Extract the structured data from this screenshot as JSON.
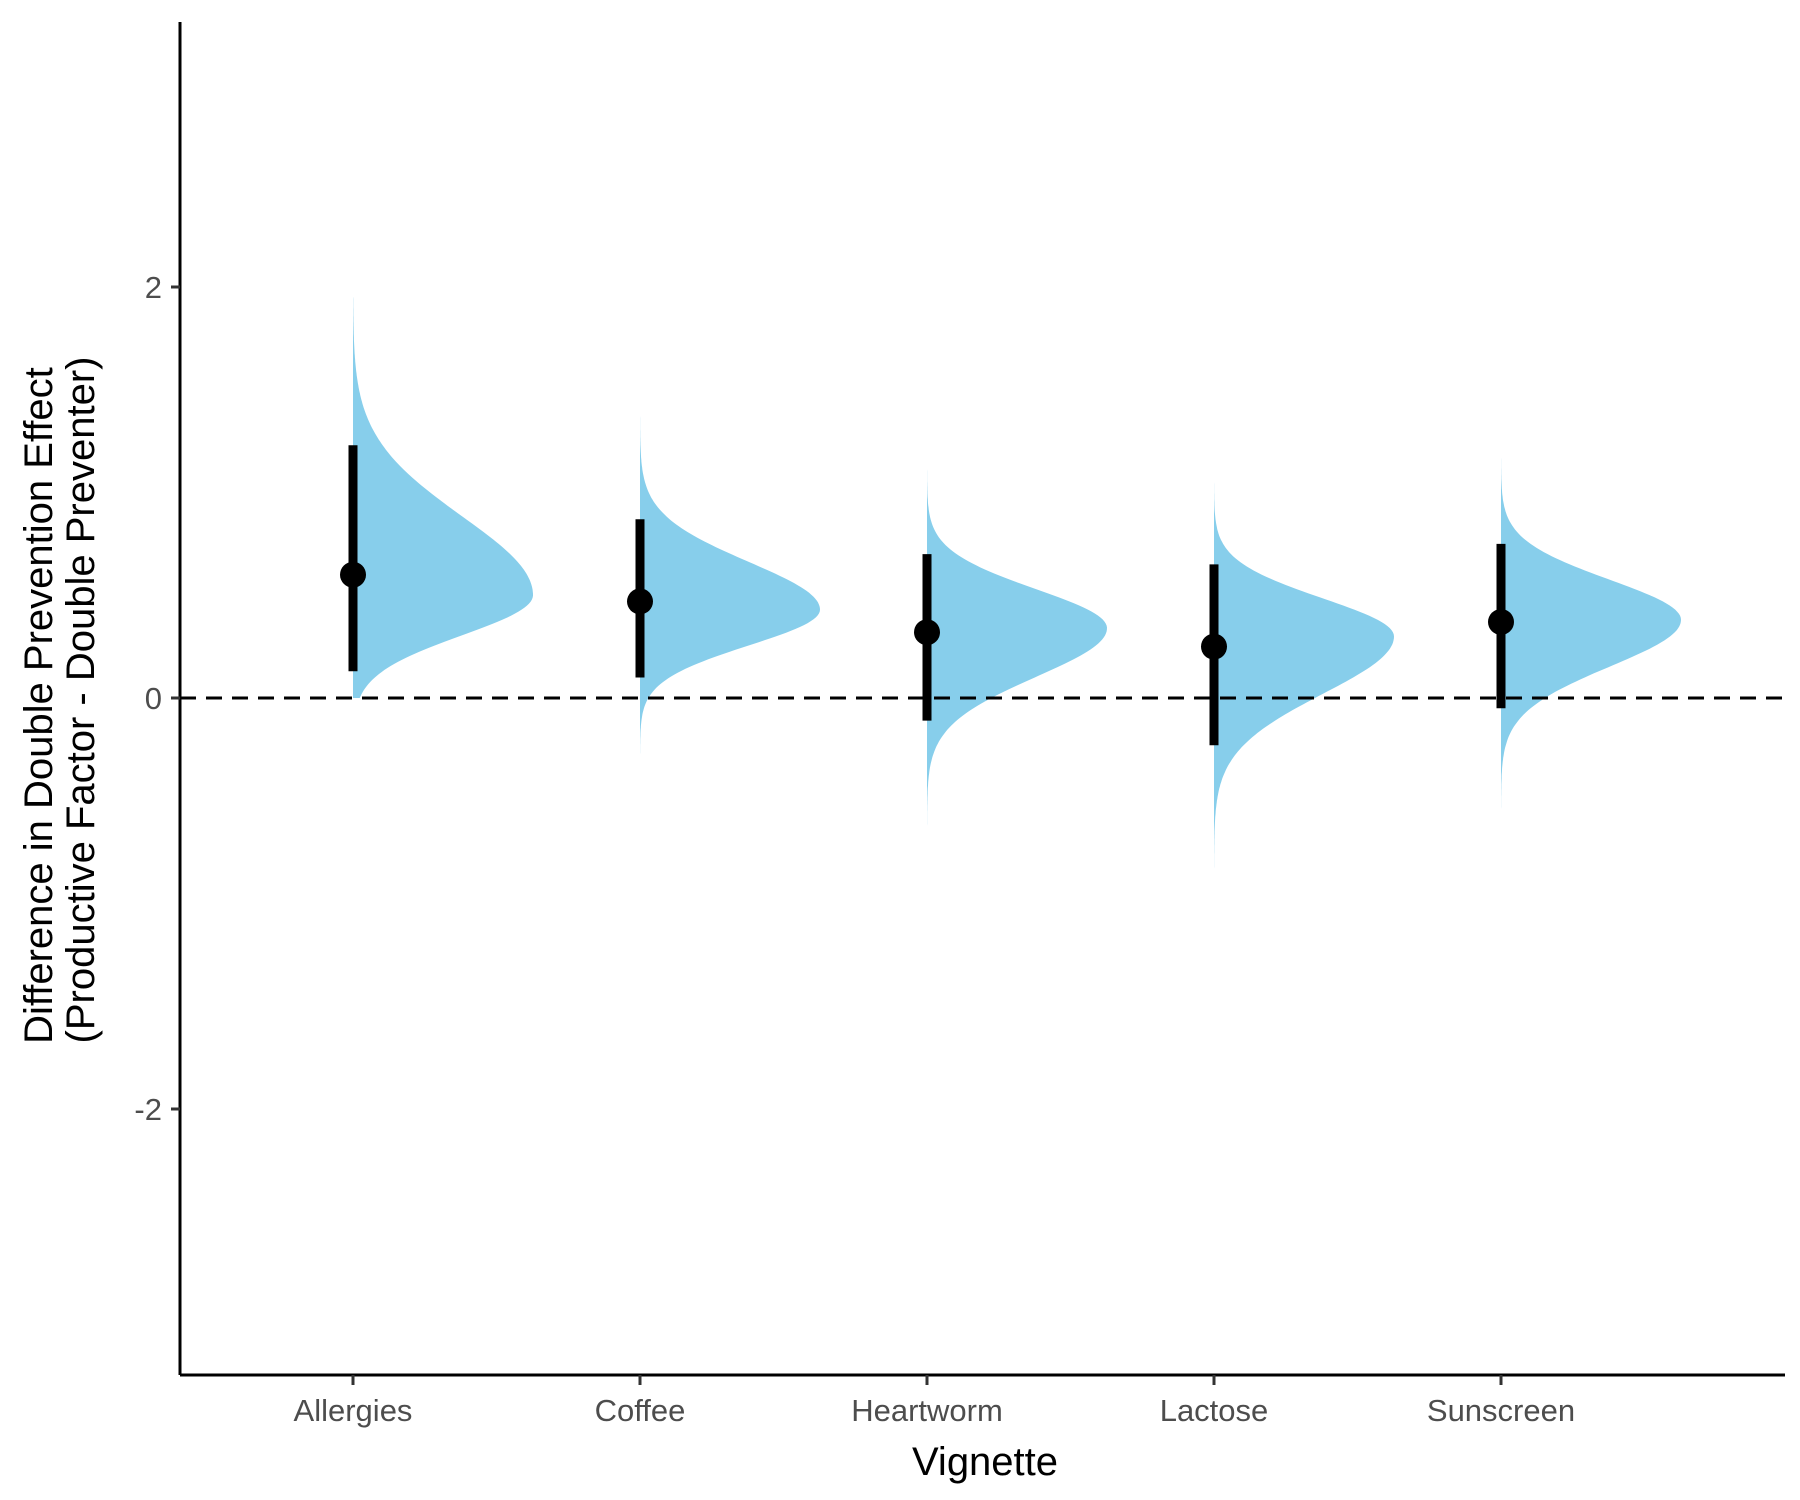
{
  "chart_data": {
    "type": "halfeye",
    "xlabel": "Vignette",
    "ylabel_lines": [
      "Difference in Double Prevention Effect",
      "(Productive Factor - Double Preventer)"
    ],
    "categories": [
      "Allergies",
      "Coffee",
      "Heartworm",
      "Lactose",
      "Sunscreen"
    ],
    "ylim": [
      -3.3,
      3.3
    ],
    "yticks": [
      -2,
      0,
      2
    ],
    "reference_line": 0,
    "grid": false,
    "distribution_color": "#87CEEB",
    "point_color": "#000000",
    "estimates": [
      {
        "category": "Allergies",
        "median": 0.6,
        "lower": 0.13,
        "upper": 1.23,
        "mode": 0.5,
        "range": [
          0.0,
          1.95
        ]
      },
      {
        "category": "Coffee",
        "median": 0.47,
        "lower": 0.1,
        "upper": 0.87,
        "mode": 0.43,
        "range": [
          -0.45,
          1.4
        ]
      },
      {
        "category": "Heartworm",
        "median": 0.32,
        "lower": -0.11,
        "upper": 0.7,
        "mode": 0.34,
        "range": [
          -0.7,
          1.25
        ]
      },
      {
        "category": "Lactose",
        "median": 0.25,
        "lower": -0.23,
        "upper": 0.65,
        "mode": 0.3,
        "range": [
          -0.9,
          1.1
        ]
      },
      {
        "category": "Sunscreen",
        "median": 0.37,
        "lower": -0.05,
        "upper": 0.75,
        "mode": 0.38,
        "range": [
          -0.75,
          1.25
        ]
      }
    ]
  }
}
